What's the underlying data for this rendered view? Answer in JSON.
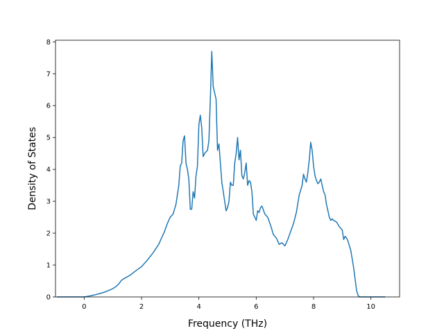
{
  "chart_data": {
    "type": "line",
    "title": "",
    "xlabel": "Frequency (THz)",
    "ylabel": "Density of States",
    "xlim": [
      -1.0,
      11.0
    ],
    "ylim": [
      0,
      8.05
    ],
    "x_ticks": [
      0,
      2,
      4,
      6,
      8,
      10
    ],
    "y_ticks": [
      0,
      1,
      2,
      3,
      4,
      5,
      6,
      7,
      8
    ],
    "grid": false,
    "line_color": "#1f77b4",
    "series": [
      {
        "x": [
          -0.95,
          -0.5,
          0.0,
          0.2,
          0.4,
          0.6,
          0.8,
          1.0,
          1.1,
          1.2,
          1.3,
          1.4,
          1.5,
          1.6,
          1.8,
          2.0,
          2.2,
          2.4,
          2.6,
          2.7,
          2.8,
          2.9,
          3.0,
          3.1,
          3.2,
          3.25,
          3.3,
          3.35,
          3.4,
          3.45,
          3.5,
          3.55,
          3.6,
          3.65,
          3.7,
          3.75,
          3.8,
          3.85,
          3.9,
          3.95,
          4.0,
          4.05,
          4.1,
          4.15,
          4.2,
          4.25,
          4.3,
          4.35,
          4.4,
          4.45,
          4.5,
          4.55,
          4.6,
          4.65,
          4.7,
          4.75,
          4.8,
          4.85,
          4.9,
          4.95,
          5.0,
          5.05,
          5.1,
          5.15,
          5.2,
          5.25,
          5.3,
          5.35,
          5.4,
          5.45,
          5.5,
          5.55,
          5.6,
          5.65,
          5.7,
          5.75,
          5.8,
          5.85,
          5.9,
          6.0,
          6.05,
          6.1,
          6.15,
          6.2,
          6.3,
          6.4,
          6.5,
          6.6,
          6.7,
          6.8,
          6.9,
          7.0,
          7.1,
          7.2,
          7.3,
          7.4,
          7.5,
          7.6,
          7.65,
          7.7,
          7.75,
          7.8,
          7.85,
          7.9,
          7.95,
          8.0,
          8.05,
          8.1,
          8.15,
          8.2,
          8.25,
          8.3,
          8.35,
          8.4,
          8.45,
          8.5,
          8.55,
          8.6,
          8.65,
          8.7,
          8.8,
          8.9,
          9.0,
          9.05,
          9.1,
          9.15,
          9.2,
          9.3,
          9.4,
          9.45,
          9.5,
          9.55,
          9.6,
          9.7,
          9.8,
          9.9,
          10.0,
          10.2,
          10.5
        ],
        "y": [
          0.0,
          0.0,
          0.0,
          0.03,
          0.07,
          0.12,
          0.18,
          0.26,
          0.32,
          0.4,
          0.52,
          0.58,
          0.63,
          0.68,
          0.82,
          0.95,
          1.15,
          1.38,
          1.65,
          1.85,
          2.05,
          2.3,
          2.5,
          2.6,
          2.9,
          3.2,
          3.5,
          4.1,
          4.2,
          4.9,
          5.05,
          4.2,
          4.0,
          3.7,
          2.75,
          2.75,
          3.3,
          3.1,
          3.8,
          4.1,
          5.4,
          5.7,
          5.3,
          4.4,
          4.5,
          4.55,
          4.6,
          4.9,
          6.2,
          7.7,
          6.6,
          6.4,
          6.2,
          4.6,
          4.8,
          4.2,
          3.6,
          3.3,
          3.0,
          2.7,
          2.8,
          3.0,
          3.6,
          3.5,
          3.5,
          4.2,
          4.5,
          5.0,
          4.3,
          4.6,
          3.8,
          3.7,
          3.9,
          4.2,
          3.5,
          3.65,
          3.6,
          3.3,
          2.6,
          2.4,
          2.7,
          2.65,
          2.8,
          2.85,
          2.6,
          2.5,
          2.25,
          1.95,
          1.85,
          1.65,
          1.7,
          1.6,
          1.8,
          2.05,
          2.3,
          2.65,
          3.2,
          3.5,
          3.85,
          3.7,
          3.6,
          3.9,
          4.3,
          4.85,
          4.6,
          4.1,
          3.8,
          3.65,
          3.55,
          3.6,
          3.7,
          3.5,
          3.3,
          3.2,
          2.9,
          2.7,
          2.5,
          2.4,
          2.45,
          2.4,
          2.35,
          2.2,
          2.1,
          1.8,
          1.9,
          1.85,
          1.75,
          1.45,
          0.9,
          0.55,
          0.2,
          0.05,
          0.0,
          0.0,
          0.0,
          0.0,
          0.0,
          0.0,
          0.0
        ]
      }
    ]
  }
}
